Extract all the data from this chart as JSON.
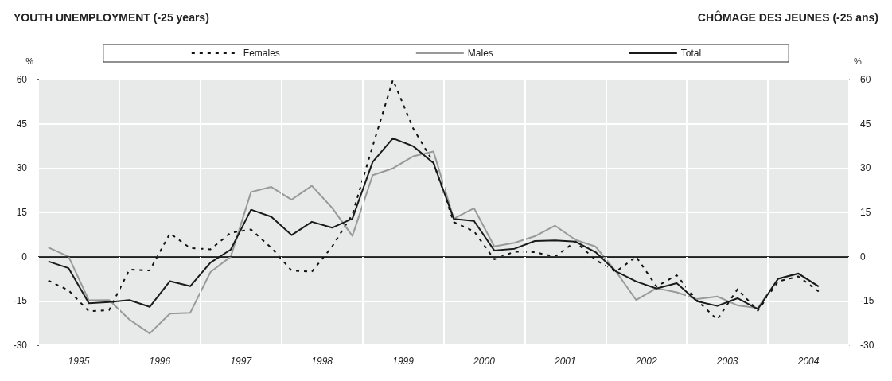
{
  "chart_data": {
    "type": "line",
    "title": "YOUTH UNEMPLOYMENT (-25 years)",
    "subtitle": "CHÔMAGE DES JEUNES (-25 ans)",
    "ylabel": "%",
    "y2label": "%",
    "x": [
      1995.125,
      1995.375,
      1995.625,
      1995.875,
      1996.125,
      1996.375,
      1996.625,
      1996.875,
      1997.125,
      1997.375,
      1997.625,
      1997.875,
      1998.125,
      1998.375,
      1998.625,
      1998.875,
      1999.125,
      1999.375,
      1999.625,
      1999.875,
      2000.125,
      2000.375,
      2000.625,
      2000.875,
      2001.125,
      2001.375,
      2001.625,
      2001.875,
      2002.125,
      2002.375,
      2002.625,
      2002.875,
      2003.125,
      2003.375,
      2003.625,
      2003.875,
      2004.125,
      2004.375,
      2004.625
    ],
    "series": [
      {
        "name": "Females",
        "color": "#111111",
        "line_style": "dashed",
        "values": [
          -8.1,
          -11.4,
          -18.5,
          -18.1,
          -4.4,
          -4.7,
          7.9,
          2.9,
          2.5,
          8.1,
          9.2,
          3.0,
          -4.7,
          -5.1,
          3.4,
          14.3,
          37.4,
          59.9,
          43.4,
          31.9,
          11.7,
          8.6,
          -0.9,
          1.7,
          1.5,
          0,
          5.1,
          -1.1,
          -5.1,
          0,
          -10.1,
          -6.3,
          -14.8,
          -21.3,
          -11.0,
          -18.3,
          -8.4,
          -6.7,
          -11.8
        ]
      },
      {
        "name": "Males",
        "color": "#999999",
        "line_style": "solid",
        "values": [
          3.1,
          0,
          -14.8,
          -14.7,
          -21.3,
          -26.0,
          -19.3,
          -19.0,
          -5.2,
          0,
          21.9,
          23.6,
          19.3,
          24.0,
          16.5,
          7.0,
          27.6,
          29.9,
          34.0,
          35.6,
          12.9,
          16.4,
          3.5,
          4.7,
          6.9,
          10.5,
          5.7,
          3.4,
          -5.0,
          -14.7,
          -10.7,
          -12.1,
          -14.4,
          -13.5,
          -16.5,
          -17.4,
          -7.5,
          -5.8,
          -10.1
        ]
      },
      {
        "name": "Total",
        "color": "#1a1a1a",
        "line_style": "solid",
        "values": [
          -1.6,
          -3.9,
          -15.8,
          -15.4,
          -14.7,
          -17.0,
          -8.3,
          -10.0,
          -2.0,
          2.4,
          15.9,
          13.5,
          7.3,
          11.8,
          9.8,
          12.9,
          32.1,
          40.1,
          37.4,
          31.7,
          12.8,
          12.1,
          2.1,
          2.7,
          5.3,
          5.5,
          5.1,
          1.5,
          -5.0,
          -8.4,
          -10.8,
          -9.0,
          -15.1,
          -16.7,
          -14.1,
          -17.8,
          -7.5,
          -5.7,
          -10.1
        ]
      }
    ],
    "xlim": [
      1995,
      2005
    ],
    "xticks": [
      {
        "value": 1995,
        "label": null
      },
      {
        "value": 1995.5,
        "label": "1995"
      },
      {
        "value": 1996,
        "label": null
      },
      {
        "value": 1996.5,
        "label": "1996"
      },
      {
        "value": 1997,
        "label": null
      },
      {
        "value": 1997.5,
        "label": "1997"
      },
      {
        "value": 1998,
        "label": null
      },
      {
        "value": 1998.5,
        "label": "1998"
      },
      {
        "value": 1999,
        "label": null
      },
      {
        "value": 1999.5,
        "label": "1999"
      },
      {
        "value": 2000,
        "label": null
      },
      {
        "value": 2000.5,
        "label": "2000"
      },
      {
        "value": 2001,
        "label": null
      },
      {
        "value": 2001.5,
        "label": "2001"
      },
      {
        "value": 2002,
        "label": null
      },
      {
        "value": 2002.5,
        "label": "2002"
      },
      {
        "value": 2003,
        "label": null
      },
      {
        "value": 2003.5,
        "label": "2003"
      },
      {
        "value": 2004,
        "label": null
      },
      {
        "value": 2004.5,
        "label": "2004"
      },
      {
        "value": 2005,
        "label": null
      }
    ],
    "ylim": [
      -30,
      60
    ],
    "yticks": [
      -30,
      -15,
      0,
      15,
      30,
      45,
      60
    ],
    "y2lim": [
      -30,
      60
    ],
    "y2ticks": [
      -30,
      -15,
      0,
      15,
      30,
      45,
      60
    ],
    "ref_lines": [
      {
        "axis": "y",
        "value": 0,
        "color": "#333333"
      }
    ],
    "grid": true,
    "legend": "top",
    "marker": "none"
  }
}
